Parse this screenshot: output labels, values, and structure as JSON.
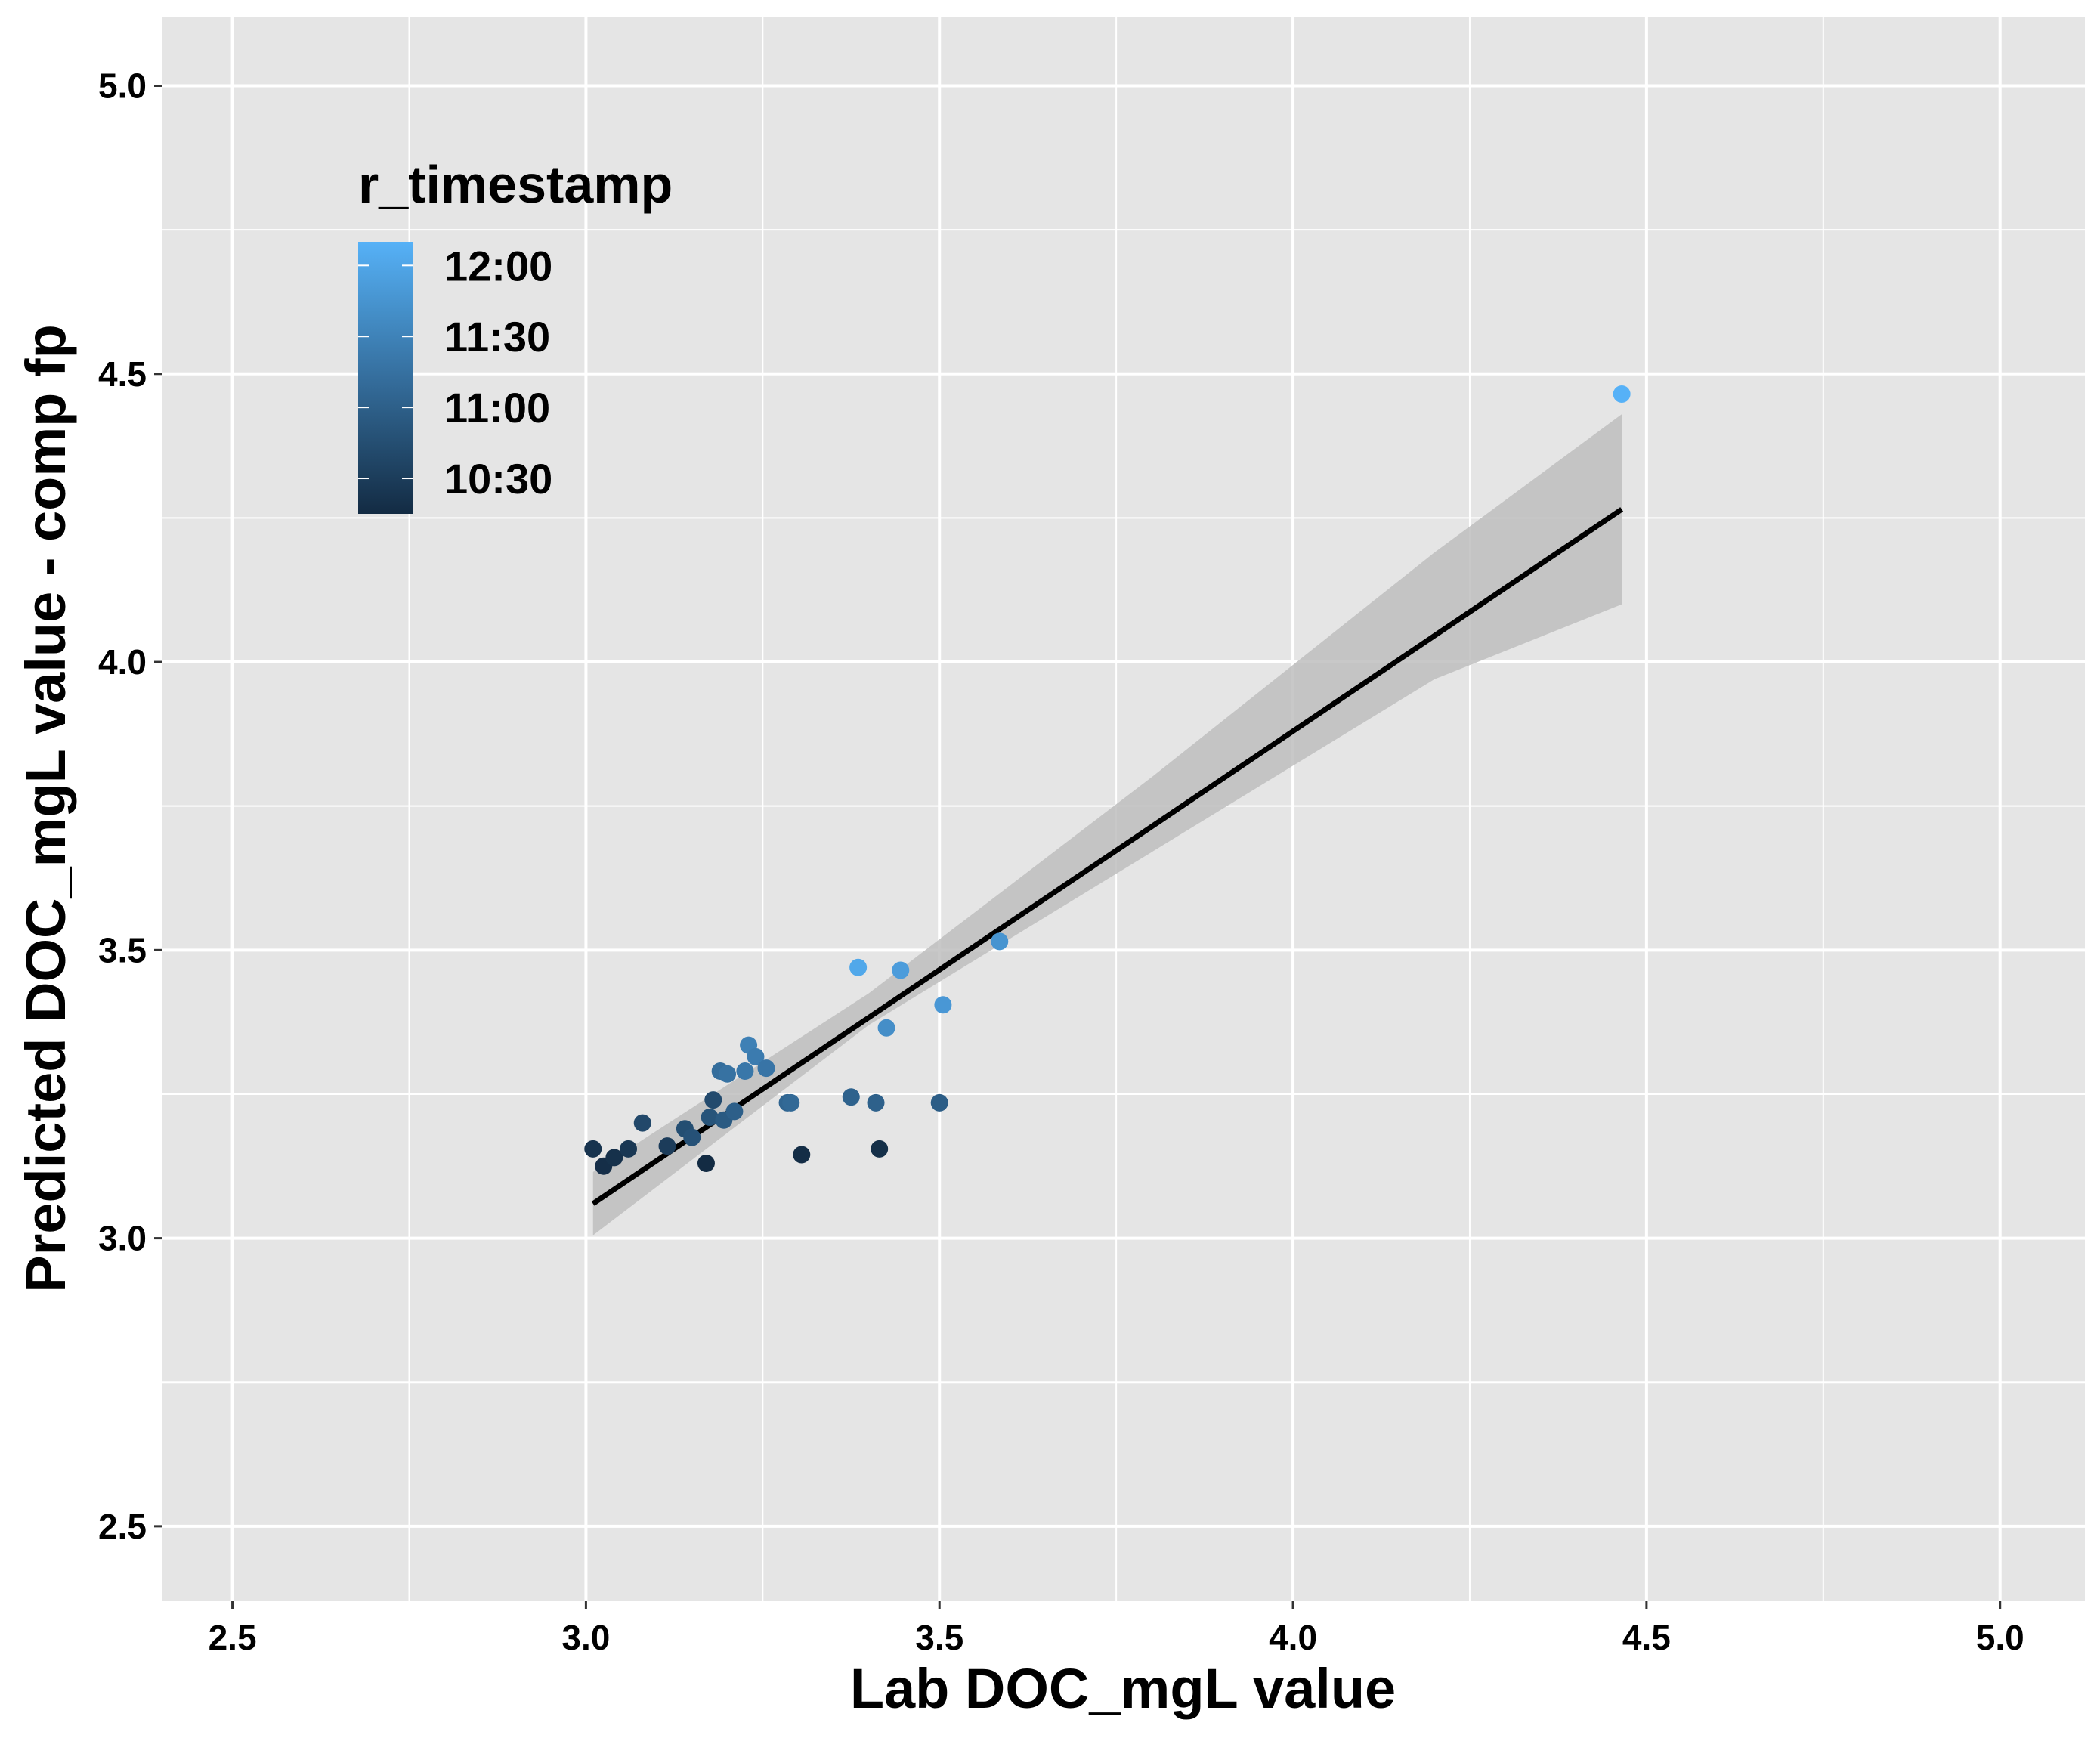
{
  "chart_data": {
    "type": "scatter",
    "title": "",
    "xlabel": "Lab DOC_mgL value",
    "ylabel": "Predicted DOC_mgL value - comp fp",
    "xlim": [
      2.4,
      5.12
    ],
    "ylim": [
      2.37,
      5.12
    ],
    "x_ticks": [
      2.5,
      3.0,
      3.5,
      4.0,
      4.5,
      5.0
    ],
    "y_ticks": [
      2.5,
      3.0,
      3.5,
      4.0,
      4.5,
      5.0
    ],
    "x_tick_labels": [
      "2.5",
      "3.0",
      "3.5",
      "4.0",
      "4.5",
      "5.0"
    ],
    "y_tick_labels": [
      "2.5",
      "3.0",
      "3.5",
      "4.0",
      "4.5",
      "5.0"
    ],
    "grid": true,
    "background": "#e5e5e5",
    "gridline_color": "#ffffff",
    "legend": {
      "title": "r_timestamp",
      "position": "top-left",
      "labels": [
        "12:00",
        "11:30",
        "11:00",
        "10:30"
      ],
      "color_low": "#132b43",
      "color_high": "#56b1f7",
      "range_minutes": [
        615,
        730
      ],
      "label_minutes": [
        720,
        690,
        660,
        630
      ]
    },
    "trend_line": {
      "x": [
        3.01,
        4.465
      ],
      "y": [
        3.06,
        4.265
      ],
      "color": "#000000"
    },
    "confidence_band": {
      "x": [
        3.01,
        3.4,
        3.8,
        4.2,
        4.465
      ],
      "upper": [
        3.115,
        3.425,
        3.8,
        4.19,
        4.43
      ],
      "lower": [
        3.005,
        3.37,
        3.67,
        3.97,
        4.1
      ],
      "color": "#bebebe"
    },
    "points": [
      {
        "x": 3.01,
        "y": 3.155,
        "t": 622
      },
      {
        "x": 3.025,
        "y": 3.125,
        "t": 618
      },
      {
        "x": 3.04,
        "y": 3.14,
        "t": 620
      },
      {
        "x": 3.06,
        "y": 3.155,
        "t": 625
      },
      {
        "x": 3.08,
        "y": 3.2,
        "t": 640
      },
      {
        "x": 3.115,
        "y": 3.16,
        "t": 630
      },
      {
        "x": 3.14,
        "y": 3.19,
        "t": 645
      },
      {
        "x": 3.15,
        "y": 3.175,
        "t": 648
      },
      {
        "x": 3.17,
        "y": 3.13,
        "t": 615
      },
      {
        "x": 3.175,
        "y": 3.21,
        "t": 650
      },
      {
        "x": 3.18,
        "y": 3.24,
        "t": 642
      },
      {
        "x": 3.19,
        "y": 3.29,
        "t": 672
      },
      {
        "x": 3.195,
        "y": 3.205,
        "t": 655
      },
      {
        "x": 3.2,
        "y": 3.285,
        "t": 676
      },
      {
        "x": 3.21,
        "y": 3.22,
        "t": 660
      },
      {
        "x": 3.225,
        "y": 3.29,
        "t": 680
      },
      {
        "x": 3.23,
        "y": 3.335,
        "t": 688
      },
      {
        "x": 3.24,
        "y": 3.315,
        "t": 684
      },
      {
        "x": 3.255,
        "y": 3.295,
        "t": 678
      },
      {
        "x": 3.285,
        "y": 3.235,
        "t": 665
      },
      {
        "x": 3.29,
        "y": 3.235,
        "t": 668
      },
      {
        "x": 3.305,
        "y": 3.145,
        "t": 617
      },
      {
        "x": 3.375,
        "y": 3.245,
        "t": 662
      },
      {
        "x": 3.385,
        "y": 3.47,
        "t": 722
      },
      {
        "x": 3.41,
        "y": 3.235,
        "t": 661
      },
      {
        "x": 3.415,
        "y": 3.155,
        "t": 619
      },
      {
        "x": 3.425,
        "y": 3.365,
        "t": 700
      },
      {
        "x": 3.445,
        "y": 3.465,
        "t": 712
      },
      {
        "x": 3.5,
        "y": 3.235,
        "t": 658
      },
      {
        "x": 3.505,
        "y": 3.405,
        "t": 708
      },
      {
        "x": 3.585,
        "y": 3.515,
        "t": 705
      },
      {
        "x": 4.465,
        "y": 4.465,
        "t": 730
      }
    ]
  }
}
